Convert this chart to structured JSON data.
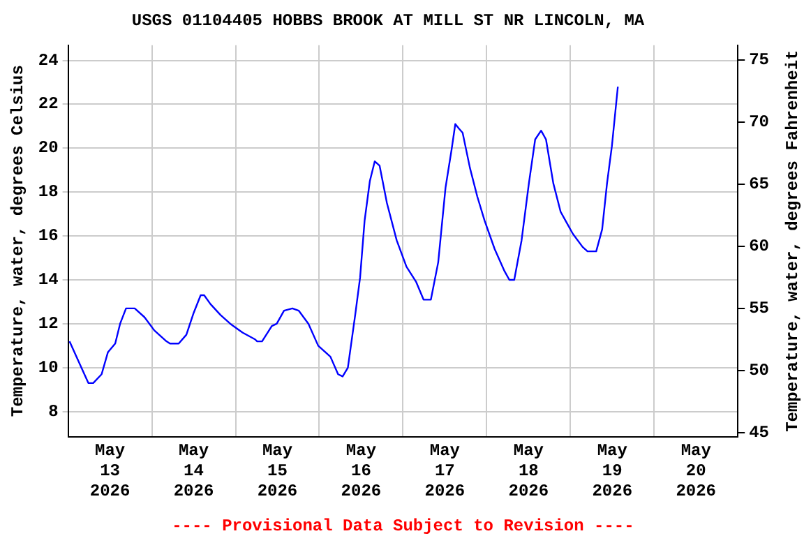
{
  "chart_data": {
    "type": "line",
    "title": "USGS 01104405 HOBBS BROOK AT MILL ST NR LINCOLN, MA",
    "ylabel": "Temperature, water, degrees Celsius",
    "y2label": "Temperature, water, degrees Fahrenheit",
    "annotations": [
      "---- Provisional Data Subject to Revision ----"
    ],
    "series": [
      {
        "color": "#0000ff",
        "x": [
          "2026-05-13T00:24",
          "2026-05-13T05:48",
          "2026-05-13T07:12",
          "2026-05-13T09:36",
          "2026-05-13T11:24",
          "2026-05-13T13:30",
          "2026-05-13T14:54",
          "2026-05-13T16:36",
          "2026-05-13T19:06",
          "2026-05-13T21:54",
          "2026-05-14T00:42",
          "2026-05-14T04:12",
          "2026-05-14T05:12",
          "2026-05-14T07:42",
          "2026-05-14T09:54",
          "2026-05-14T12:00",
          "2026-05-14T14:00",
          "2026-05-14T15:00",
          "2026-05-14T16:48",
          "2026-05-14T19:42",
          "2026-05-14T22:30",
          "2026-05-15T02:00",
          "2026-05-15T05:30",
          "2026-05-15T06:12",
          "2026-05-15T07:36",
          "2026-05-15T10:24",
          "2026-05-15T11:48",
          "2026-05-15T13:54",
          "2026-05-15T16:18",
          "2026-05-15T18:06",
          "2026-05-15T20:54",
          "2026-05-15T23:42",
          "2026-05-16T03:12",
          "2026-05-16T05:24",
          "2026-05-16T06:42",
          "2026-05-16T08:12",
          "2026-05-16T10:18",
          "2026-05-16T11:42",
          "2026-05-16T13:00",
          "2026-05-16T14:30",
          "2026-05-16T15:54",
          "2026-05-16T17:18",
          "2026-05-16T19:24",
          "2026-05-16T22:12",
          "2026-05-17T01:00",
          "2026-05-17T03:48",
          "2026-05-17T05:54",
          "2026-05-17T08:00",
          "2026-05-17T10:06",
          "2026-05-17T12:12",
          "2026-05-17T13:54",
          "2026-05-17T15:00",
          "2026-05-17T16:00",
          "2026-05-17T17:06",
          "2026-05-17T19:12",
          "2026-05-17T21:18",
          "2026-05-17T23:24",
          "2026-05-18T02:18",
          "2026-05-18T05:06",
          "2026-05-18T06:30",
          "2026-05-18T07:54",
          "2026-05-18T10:00",
          "2026-05-18T12:06",
          "2026-05-18T13:54",
          "2026-05-18T15:36",
          "2026-05-18T17:00",
          "2026-05-18T19:06",
          "2026-05-18T21:12",
          "2026-05-18T22:36",
          "2026-05-19T00:42",
          "2026-05-19T03:30",
          "2026-05-19T04:54",
          "2026-05-19T07:24",
          "2026-05-19T09:06",
          "2026-05-19T10:30",
          "2026-05-19T11:54",
          "2026-05-19T13:36"
        ],
        "values": [
          11.2,
          9.3,
          9.3,
          9.7,
          10.7,
          11.1,
          12.0,
          12.7,
          12.7,
          12.3,
          11.7,
          11.2,
          11.1,
          11.1,
          11.5,
          12.5,
          13.3,
          13.3,
          12.9,
          12.4,
          12.0,
          11.6,
          11.3,
          11.2,
          11.2,
          11.9,
          12.0,
          12.6,
          12.7,
          12.6,
          12.0,
          11.0,
          10.5,
          9.7,
          9.6,
          10.0,
          12.4,
          14.1,
          16.7,
          18.5,
          19.4,
          19.2,
          17.5,
          15.8,
          14.6,
          13.9,
          13.1,
          13.1,
          14.8,
          18.2,
          19.9,
          21.1,
          20.9,
          20.7,
          19.1,
          17.8,
          16.7,
          15.4,
          14.4,
          14.0,
          14.0,
          15.8,
          18.4,
          20.4,
          20.8,
          20.4,
          18.4,
          17.1,
          16.7,
          16.1,
          15.5,
          15.3,
          15.3,
          16.3,
          18.4,
          20.1,
          22.8
        ]
      }
    ],
    "xlim": [
      "2026-05-13T00:00",
      "2026-05-21T00:00"
    ],
    "xticks": [
      {
        "value": "2026-05-13T12:00",
        "label": "May\n13\n2026"
      },
      {
        "value": "2026-05-14T00:00",
        "label": null
      },
      {
        "value": "2026-05-14T12:00",
        "label": "May\n14\n2026"
      },
      {
        "value": "2026-05-15T00:00",
        "label": null
      },
      {
        "value": "2026-05-15T12:00",
        "label": "May\n15\n2026"
      },
      {
        "value": "2026-05-16T00:00",
        "label": null
      },
      {
        "value": "2026-05-16T12:00",
        "label": "May\n16\n2026"
      },
      {
        "value": "2026-05-17T00:00",
        "label": null
      },
      {
        "value": "2026-05-17T12:00",
        "label": "May\n17\n2026"
      },
      {
        "value": "2026-05-18T00:00",
        "label": null
      },
      {
        "value": "2026-05-18T12:00",
        "label": "May\n18\n2026"
      },
      {
        "value": "2026-05-19T00:00",
        "label": null
      },
      {
        "value": "2026-05-19T12:00",
        "label": "May\n19\n2026"
      },
      {
        "value": "2026-05-20T00:00",
        "label": null
      },
      {
        "value": "2026-05-20T12:00",
        "label": "May\n20\n2026"
      }
    ],
    "ylim": [
      6.86,
      24.69
    ],
    "yticks": [
      8,
      10,
      12,
      14,
      16,
      18,
      20,
      22,
      24
    ],
    "y2lim": [
      44.7,
      76.2
    ],
    "y2ticks": [
      45,
      50,
      55,
      60,
      65,
      70,
      75
    ],
    "grid": true,
    "legend": false,
    "marker": "none",
    "line_style": "solid"
  }
}
